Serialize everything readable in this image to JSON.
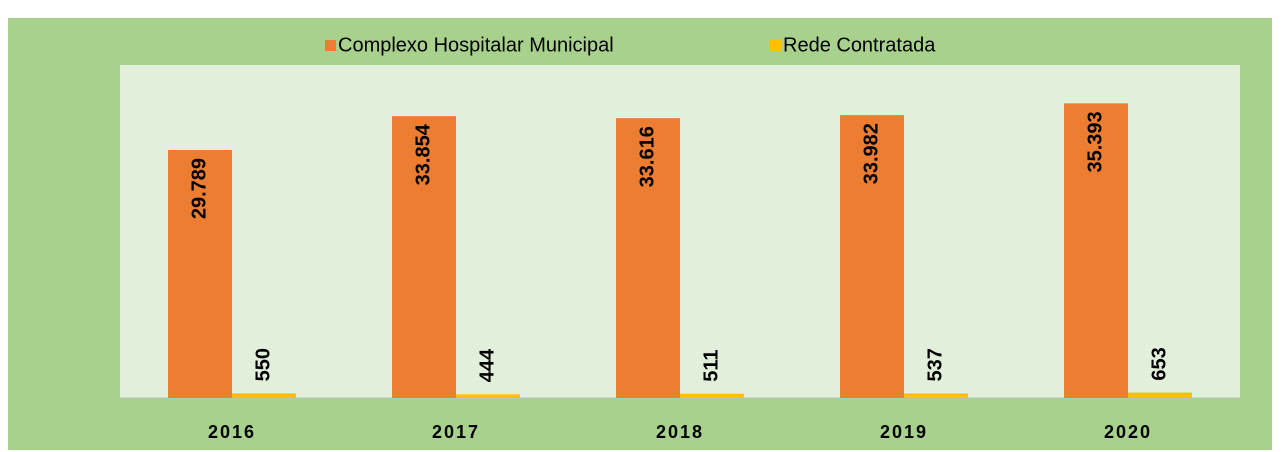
{
  "chart_data": {
    "type": "bar",
    "categories": [
      "2016",
      "2017",
      "2018",
      "2019",
      "2020"
    ],
    "series": [
      {
        "name": "Complexo Hospitalar Municipal",
        "color": "#ed7d31",
        "values": [
          29789,
          33854,
          33616,
          33982,
          35393
        ],
        "value_labels": [
          "29.789",
          "33.854",
          "33.616",
          "33.982",
          "35.393"
        ]
      },
      {
        "name": "Rede Contratada",
        "color": "#ffc000",
        "values": [
          550,
          444,
          511,
          537,
          653
        ]
      }
    ],
    "ylim": [
      0,
      40000
    ],
    "legend": "top"
  }
}
